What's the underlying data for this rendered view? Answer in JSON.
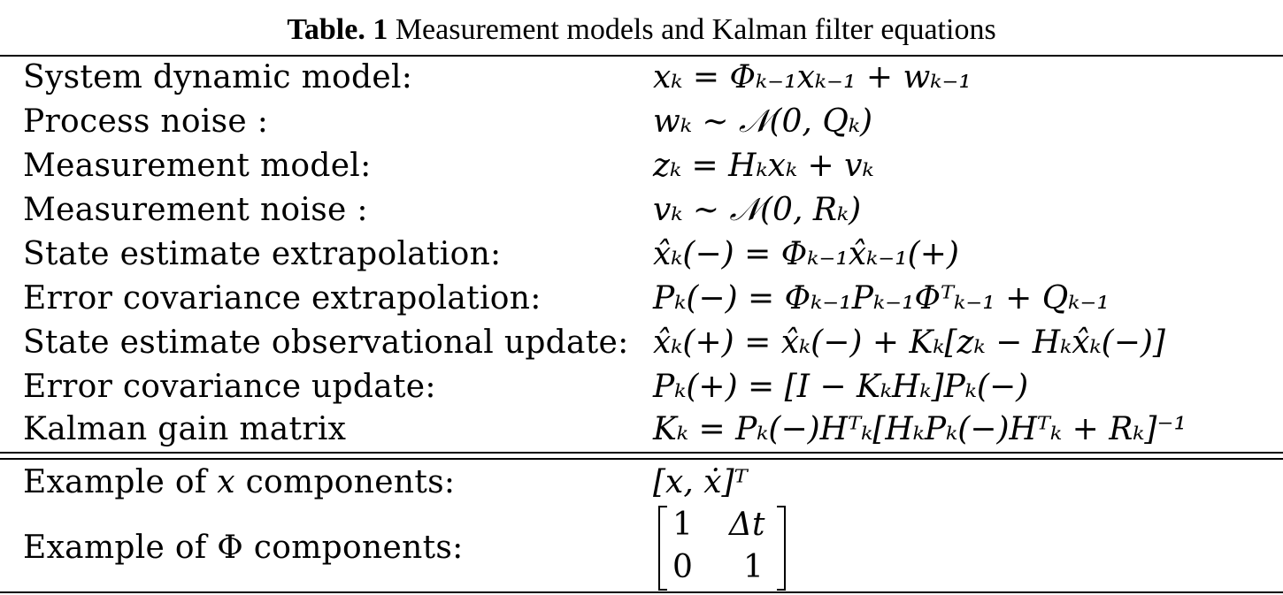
{
  "caption": {
    "lead": "Table. 1",
    "text": " Measurement models and Kalman filter equations"
  },
  "rows": [
    {
      "label": "System dynamic model:",
      "equation": "xₖ = Φₖ₋₁xₖ₋₁ + wₖ₋₁"
    },
    {
      "label": "Process noise :",
      "equation": "wₖ ∼ 𝒩(0, Qₖ)"
    },
    {
      "label": "Measurement model:",
      "equation": "zₖ = Hₖxₖ + vₖ"
    },
    {
      "label": "Measurement noise :",
      "equation": "vₖ ∼ 𝒩(0, Rₖ)"
    },
    {
      "label": "State estimate extrapolation:",
      "equation": "x̂ₖ(−) = Φₖ₋₁x̂ₖ₋₁(+)"
    },
    {
      "label": "Error covariance extrapolation:",
      "equation": "Pₖ(−) = Φₖ₋₁Pₖ₋₁Φᵀₖ₋₁ + Qₖ₋₁"
    },
    {
      "label": "State estimate observational update:",
      "equation": "x̂ₖ(+) = x̂ₖ(−) + Kₖ[zₖ − Hₖx̂ₖ(−)]"
    },
    {
      "label": "Error covariance update:",
      "equation": "Pₖ(+) = [I − KₖHₖ]Pₖ(−)"
    },
    {
      "label": "Kalman gain matrix",
      "equation": "Kₖ = Pₖ(−)Hᵀₖ[HₖPₖ(−)Hᵀₖ + Rₖ]⁻¹"
    }
  ],
  "examples": {
    "x_label_pre": "Example of ",
    "x_symbol": "x",
    "x_label_post": " components:",
    "x_value": "[x, ẋ]ᵀ",
    "phi_label_pre": "Example of ",
    "phi_symbol": "Φ",
    "phi_label_post": " components:",
    "phi_matrix": [
      [
        "1",
        "Δt"
      ],
      [
        "0",
        "1"
      ]
    ]
  }
}
